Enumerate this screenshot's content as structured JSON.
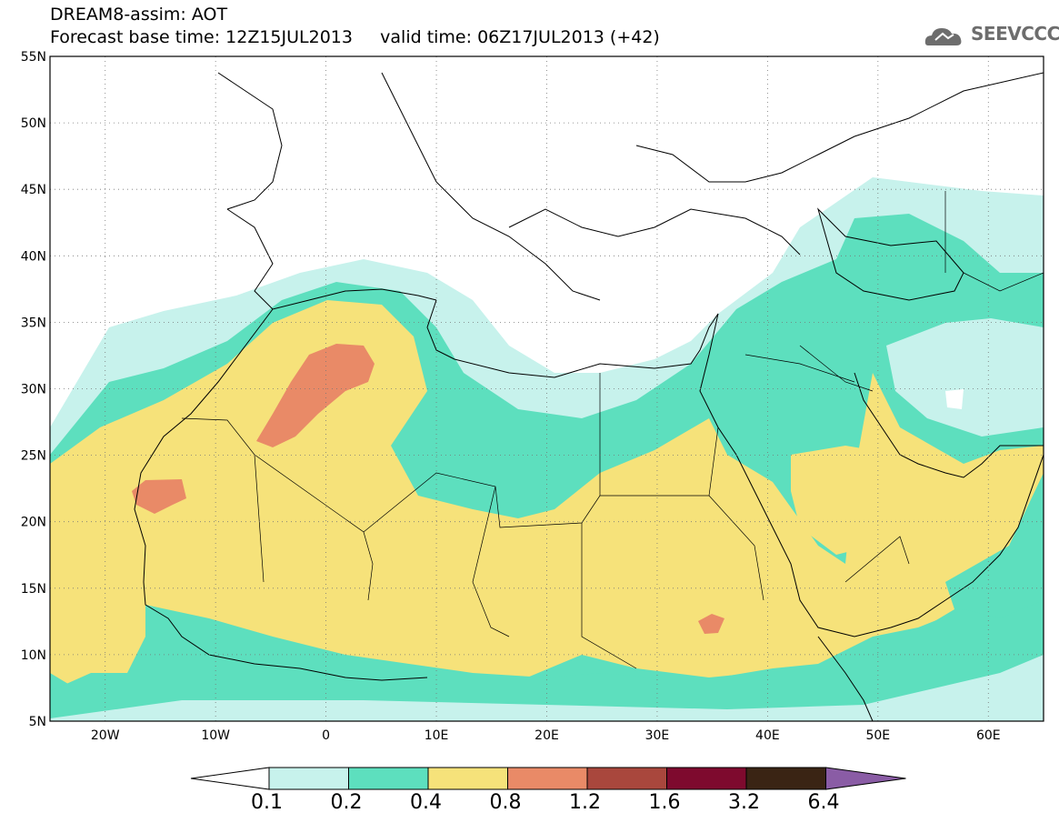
{
  "header": {
    "line1": "DREAM8-assim: AOT",
    "line2": "Forecast base time: 12Z15JUL2013     valid time: 06Z17JUL2013 (+42)"
  },
  "logo": {
    "text": "SEEVCCC",
    "icon": "cloud-logo-icon",
    "color": "#6d6d6d"
  },
  "map": {
    "lat_labels": [
      "55N",
      "50N",
      "45N",
      "40N",
      "35N",
      "30N",
      "25N",
      "20N",
      "15N",
      "10N",
      "5N"
    ],
    "lon_labels": [
      "20W",
      "10W",
      "0",
      "10E",
      "20E",
      "30E",
      "40E",
      "50E",
      "60E"
    ],
    "lat_range": [
      5,
      55
    ],
    "lon_range": [
      -25,
      65
    ],
    "grid": "dotted"
  },
  "colorbar": {
    "levels": [
      "0.1",
      "0.2",
      "0.4",
      "0.8",
      "1.2",
      "1.6",
      "3.2",
      "6.4"
    ],
    "colors": [
      "#ffffff",
      "#c7f2ec",
      "#5ddfbe",
      "#f6e27a",
      "#e98a67",
      "#a9473d",
      "#7e0a2e",
      "#3a2414",
      "#8a5ca5"
    ]
  }
}
